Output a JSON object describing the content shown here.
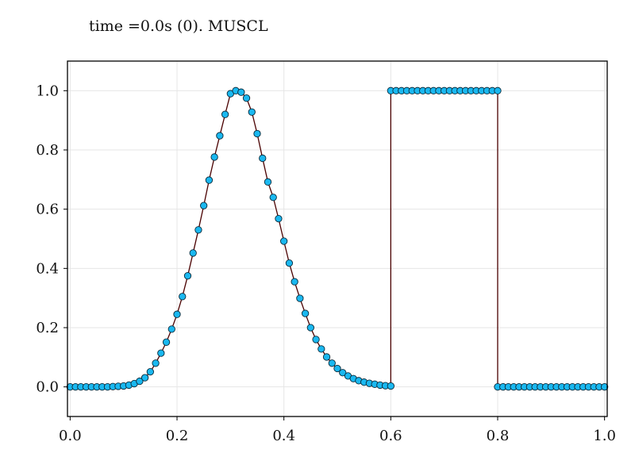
{
  "title": "time =0.0s (0). MUSCL",
  "colors": {
    "marker_fill": "#1ab8f0",
    "marker_edge": "#0a2a3a",
    "line": "#4a0000",
    "grid": "#e6e6e6",
    "axis": "#000000"
  },
  "chart_data": {
    "type": "scatter",
    "title": "time =0.0s (0). MUSCL",
    "xlabel": "",
    "ylabel": "",
    "xlim": [
      -0.005,
      1.005
    ],
    "ylim": [
      -0.1,
      1.1
    ],
    "xticks": [
      "0.0",
      "0.2",
      "0.4",
      "0.6",
      "0.8",
      "1.0"
    ],
    "yticks": [
      "0.0",
      "0.2",
      "0.4",
      "0.6",
      "0.8",
      "1.0"
    ],
    "grid": true,
    "legend": "none",
    "series": [
      {
        "style": "markers joined by line",
        "x": [
          0.0,
          0.01,
          0.02,
          0.03,
          0.04,
          0.05,
          0.06,
          0.07,
          0.08,
          0.09,
          0.1,
          0.11,
          0.12,
          0.13,
          0.14,
          0.15,
          0.16,
          0.17,
          0.18,
          0.19,
          0.2,
          0.21,
          0.22,
          0.23,
          0.24,
          0.25,
          0.26,
          0.27,
          0.28,
          0.29,
          0.3,
          0.31,
          0.32,
          0.33,
          0.34,
          0.35,
          0.36,
          0.37,
          0.38,
          0.39,
          0.4,
          0.41,
          0.42,
          0.43,
          0.44,
          0.45,
          0.46,
          0.47,
          0.48,
          0.49,
          0.5,
          0.51,
          0.52,
          0.53,
          0.54,
          0.55,
          0.56,
          0.57,
          0.58,
          0.59,
          0.6,
          0.6,
          0.61,
          0.62,
          0.63,
          0.64,
          0.65,
          0.66,
          0.67,
          0.68,
          0.69,
          0.7,
          0.71,
          0.72,
          0.73,
          0.74,
          0.75,
          0.76,
          0.77,
          0.78,
          0.79,
          0.8,
          0.8,
          0.81,
          0.82,
          0.83,
          0.84,
          0.85,
          0.86,
          0.87,
          0.88,
          0.89,
          0.9,
          0.91,
          0.92,
          0.93,
          0.94,
          0.95,
          0.96,
          0.97,
          0.98,
          0.99,
          1.0
        ],
        "y": [
          0.0,
          0.0,
          0.0,
          0.0,
          0.0,
          0.0,
          0.0,
          0.0,
          0.001,
          0.002,
          0.003,
          0.006,
          0.011,
          0.019,
          0.031,
          0.051,
          0.08,
          0.114,
          0.151,
          0.195,
          0.245,
          0.305,
          0.375,
          0.452,
          0.53,
          0.612,
          0.698,
          0.776,
          0.848,
          0.92,
          0.99,
          1.0,
          0.995,
          0.975,
          0.928,
          0.855,
          0.772,
          0.692,
          0.64,
          0.568,
          0.492,
          0.418,
          0.355,
          0.299,
          0.248,
          0.2,
          0.16,
          0.128,
          0.101,
          0.08,
          0.062,
          0.048,
          0.037,
          0.028,
          0.021,
          0.016,
          0.012,
          0.009,
          0.006,
          0.004,
          0.003,
          1.0,
          1.0,
          1.0,
          1.0,
          1.0,
          1.0,
          1.0,
          1.0,
          1.0,
          1.0,
          1.0,
          1.0,
          1.0,
          1.0,
          1.0,
          1.0,
          1.0,
          1.0,
          1.0,
          1.0,
          1.0,
          0.0,
          0.0,
          0.0,
          0.0,
          0.0,
          0.0,
          0.0,
          0.0,
          0.0,
          0.0,
          0.0,
          0.0,
          0.0,
          0.0,
          0.0,
          0.0,
          0.0,
          0.0,
          0.0,
          0.0,
          0.0
        ]
      }
    ]
  }
}
